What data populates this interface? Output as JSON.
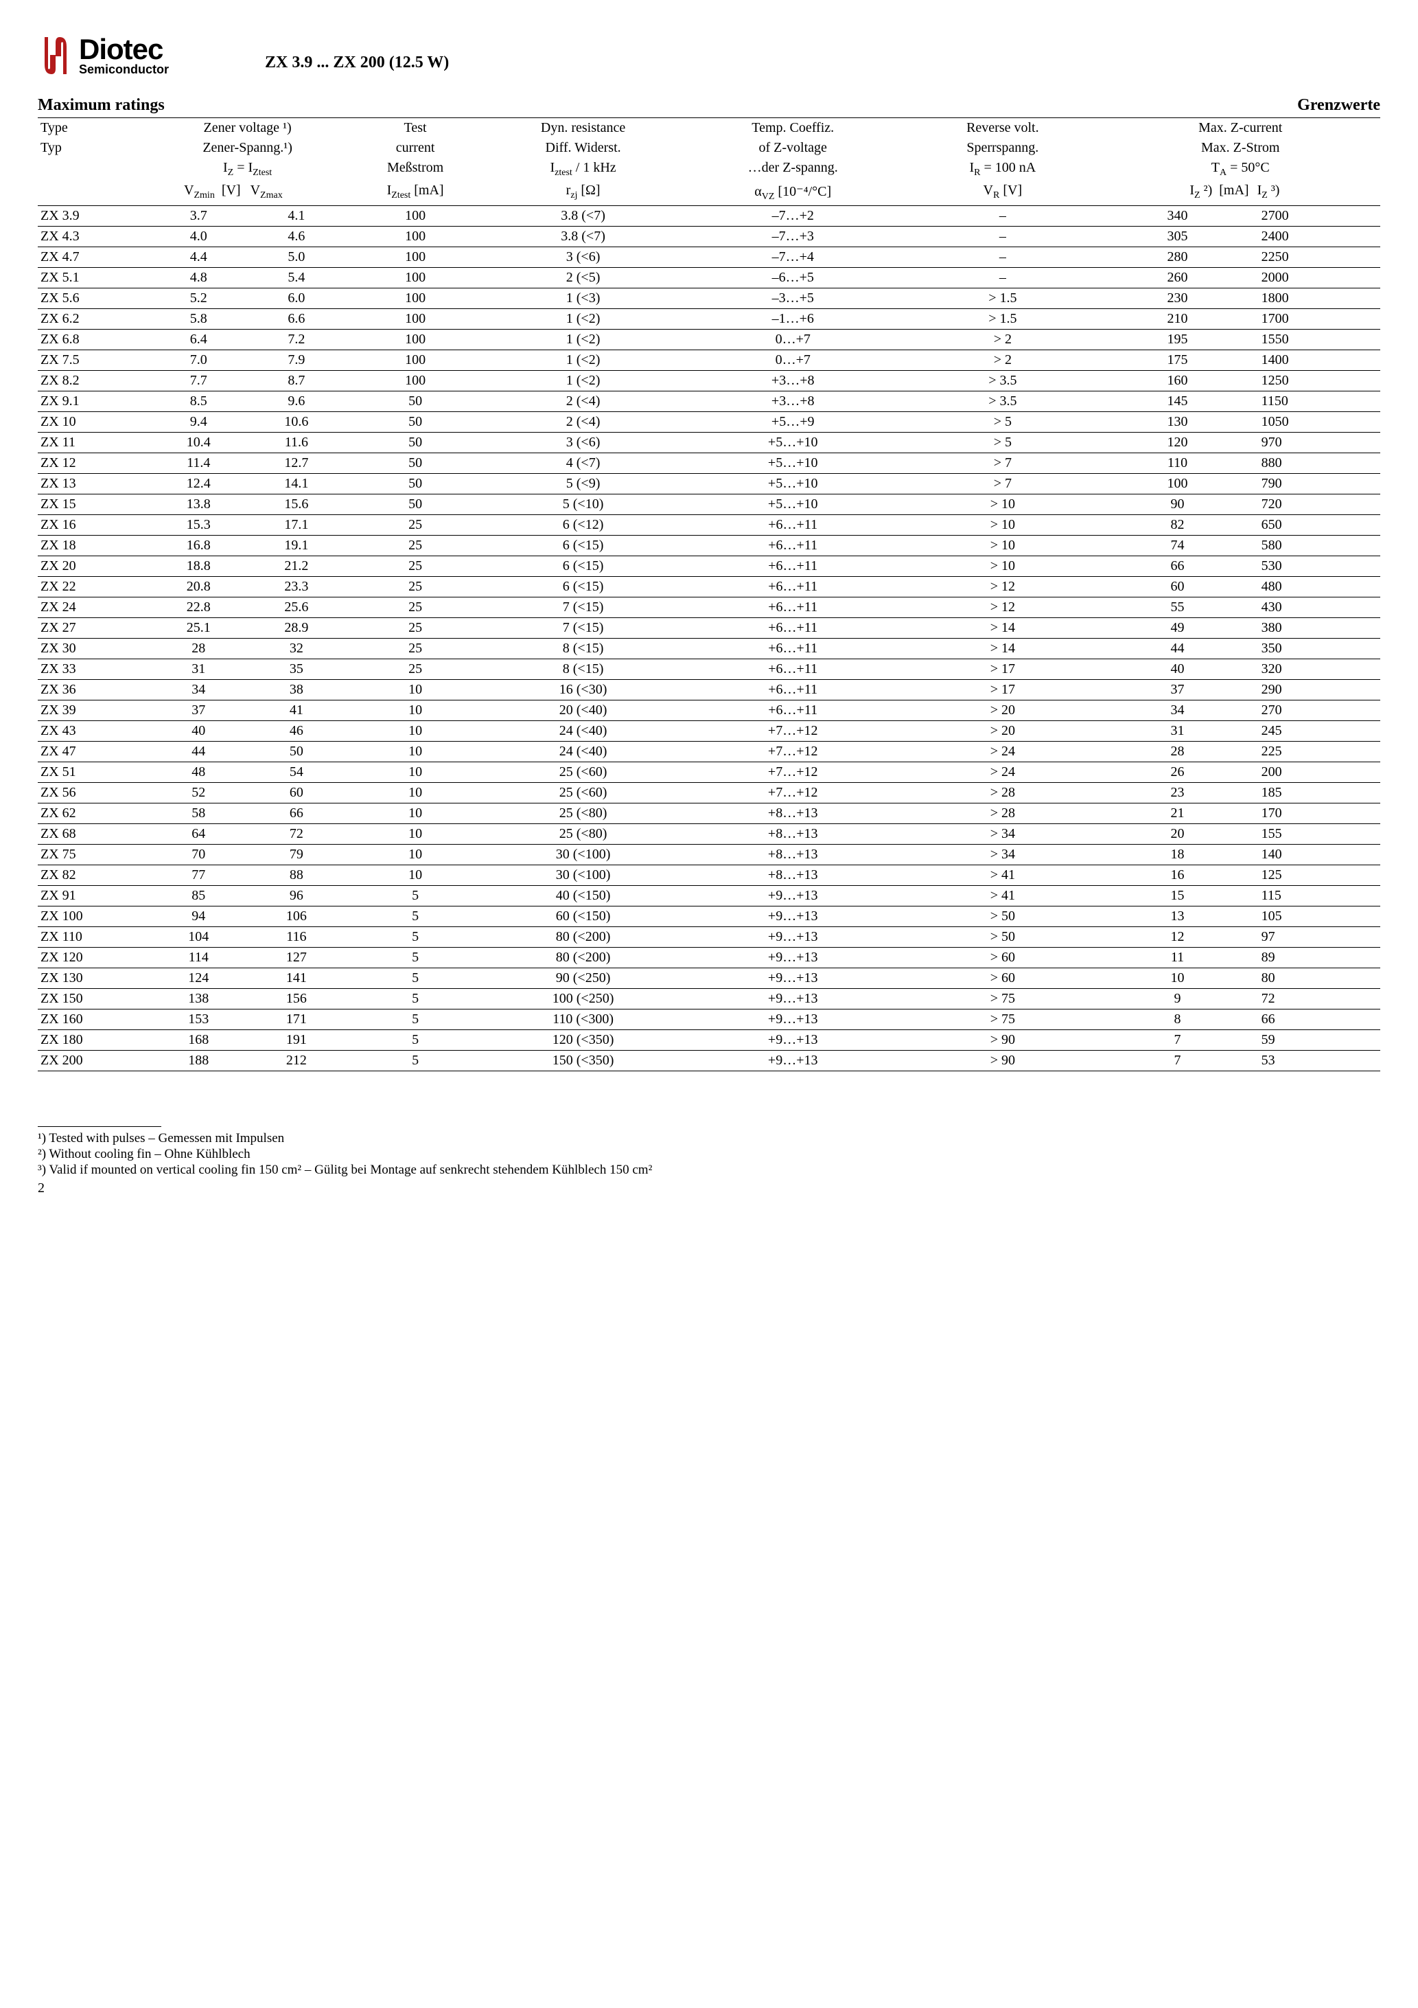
{
  "logo": {
    "main": "Diotec",
    "sub": "Semiconductor",
    "color": "#b31b1b"
  },
  "doc_title": "ZX 3.9 ... ZX 200 (12.5 W)",
  "section_left": "Maximum ratings",
  "section_right": "Grenzwerte",
  "page_number": "2",
  "headers": {
    "type1": "Type",
    "type2": "Typ",
    "zener1": "Zener voltage ¹)",
    "zener2": "Zener-Spanng.¹)",
    "zener3_pre": "I",
    "zener3_sub1": "Z",
    "zener3_mid": " = I",
    "zener3_sub2": "Ztest",
    "zener4_vmin_pre": "V",
    "zener4_vmin_sub": "Zmin",
    "zener4_unit": "[V]",
    "zener4_vmax_pre": "V",
    "zener4_vmax_sub": "Zmax",
    "test1": "Test",
    "test2": "current",
    "test3": "Meßstrom",
    "test4_pre": "I",
    "test4_sub": "Ztest",
    "test4_unit": "[mA]",
    "dyn1": "Dyn. resistance",
    "dyn2": "Diff. Widerst.",
    "dyn3_pre": "I",
    "dyn3_sub": "ztest",
    "dyn3_post": " / 1 kHz",
    "dyn4_pre": "r",
    "dyn4_sub": "zj",
    "dyn4_unit": "[Ω]",
    "temp1": "Temp. Coeffiz.",
    "temp2": "of Z-voltage",
    "temp3": "…der Z-spanng.",
    "temp4_pre": "α",
    "temp4_sub": "VZ",
    "temp4_unit": "[10⁻⁴/°C]",
    "rev1": "Reverse volt.",
    "rev2": "Sperrspanng.",
    "rev3_pre": "I",
    "rev3_sub": "R",
    "rev3_post": " = 100 nA",
    "rev4_pre": "V",
    "rev4_sub": "R",
    "rev4_unit": "[V]",
    "max1": "Max. Z-current",
    "max2": "Max. Z-Strom",
    "max3_pre": "T",
    "max3_sub": "A",
    "max3_post": " = 50°C",
    "max4_iz2_pre": "I",
    "max4_iz2_sub": "Z",
    "max4_iz2_sup": " ²)",
    "max4_unit": "[mA]",
    "max4_iz3_pre": "I",
    "max4_iz3_sub": "Z",
    "max4_iz3_sup": " ³)"
  },
  "rows": [
    {
      "type": "ZX 3.9",
      "vmin": "3.7",
      "vmax": "4.1",
      "test": "100",
      "dyn": "3.8 (<7)",
      "temp": "–7…+2",
      "rev": "–",
      "iz2": "340",
      "iz3": "2700"
    },
    {
      "type": "ZX 4.3",
      "vmin": "4.0",
      "vmax": "4.6",
      "test": "100",
      "dyn": "3.8 (<7)",
      "temp": "–7…+3",
      "rev": "–",
      "iz2": "305",
      "iz3": "2400"
    },
    {
      "type": "ZX 4.7",
      "vmin": "4.4",
      "vmax": "5.0",
      "test": "100",
      "dyn": "3 (<6)",
      "temp": "–7…+4",
      "rev": "–",
      "iz2": "280",
      "iz3": "2250"
    },
    {
      "type": "ZX 5.1",
      "vmin": "4.8",
      "vmax": "5.4",
      "test": "100",
      "dyn": "2 (<5)",
      "temp": "–6…+5",
      "rev": "–",
      "iz2": "260",
      "iz3": "2000"
    },
    {
      "type": "ZX 5.6",
      "vmin": "5.2",
      "vmax": "6.0",
      "test": "100",
      "dyn": "1 (<3)",
      "temp": "–3…+5",
      "rev": "> 1.5",
      "iz2": "230",
      "iz3": "1800"
    },
    {
      "type": "ZX 6.2",
      "vmin": "5.8",
      "vmax": "6.6",
      "test": "100",
      "dyn": "1 (<2)",
      "temp": "–1…+6",
      "rev": "> 1.5",
      "iz2": "210",
      "iz3": "1700"
    },
    {
      "type": "ZX 6.8",
      "vmin": "6.4",
      "vmax": "7.2",
      "test": "100",
      "dyn": "1 (<2)",
      "temp": "0…+7",
      "rev": "> 2",
      "iz2": "195",
      "iz3": "1550"
    },
    {
      "type": "ZX 7.5",
      "vmin": "7.0",
      "vmax": "7.9",
      "test": "100",
      "dyn": "1 (<2)",
      "temp": "0…+7",
      "rev": "> 2",
      "iz2": "175",
      "iz3": "1400"
    },
    {
      "type": "ZX 8.2",
      "vmin": "7.7",
      "vmax": "8.7",
      "test": "100",
      "dyn": "1 (<2)",
      "temp": "+3…+8",
      "rev": "> 3.5",
      "iz2": "160",
      "iz3": "1250"
    },
    {
      "type": "ZX 9.1",
      "vmin": "8.5",
      "vmax": "9.6",
      "test": "50",
      "dyn": "2 (<4)",
      "temp": "+3…+8",
      "rev": "> 3.5",
      "iz2": "145",
      "iz3": "1150"
    },
    {
      "type": "ZX 10",
      "vmin": "9.4",
      "vmax": "10.6",
      "test": "50",
      "dyn": "2 (<4)",
      "temp": "+5…+9",
      "rev": "> 5",
      "iz2": "130",
      "iz3": "1050"
    },
    {
      "type": "ZX 11",
      "vmin": "10.4",
      "vmax": "11.6",
      "test": "50",
      "dyn": "3 (<6)",
      "temp": "+5…+10",
      "rev": "> 5",
      "iz2": "120",
      "iz3": "970"
    },
    {
      "type": "ZX 12",
      "vmin": "11.4",
      "vmax": "12.7",
      "test": "50",
      "dyn": "4 (<7)",
      "temp": "+5…+10",
      "rev": "> 7",
      "iz2": "110",
      "iz3": "880"
    },
    {
      "type": "ZX 13",
      "vmin": "12.4",
      "vmax": "14.1",
      "test": "50",
      "dyn": "5 (<9)",
      "temp": "+5…+10",
      "rev": "> 7",
      "iz2": "100",
      "iz3": "790"
    },
    {
      "type": "ZX 15",
      "vmin": "13.8",
      "vmax": "15.6",
      "test": "50",
      "dyn": "5 (<10)",
      "temp": "+5…+10",
      "rev": "> 10",
      "iz2": "90",
      "iz3": "720"
    },
    {
      "type": "ZX 16",
      "vmin": "15.3",
      "vmax": "17.1",
      "test": "25",
      "dyn": "6 (<12)",
      "temp": "+6…+11",
      "rev": "> 10",
      "iz2": "82",
      "iz3": "650"
    },
    {
      "type": "ZX 18",
      "vmin": "16.8",
      "vmax": "19.1",
      "test": "25",
      "dyn": "6 (<15)",
      "temp": "+6…+11",
      "rev": "> 10",
      "iz2": "74",
      "iz3": "580"
    },
    {
      "type": "ZX 20",
      "vmin": "18.8",
      "vmax": "21.2",
      "test": "25",
      "dyn": "6 (<15)",
      "temp": "+6…+11",
      "rev": "> 10",
      "iz2": "66",
      "iz3": "530"
    },
    {
      "type": "ZX 22",
      "vmin": "20.8",
      "vmax": "23.3",
      "test": "25",
      "dyn": "6 (<15)",
      "temp": "+6…+11",
      "rev": "> 12",
      "iz2": "60",
      "iz3": "480"
    },
    {
      "type": "ZX 24",
      "vmin": "22.8",
      "vmax": "25.6",
      "test": "25",
      "dyn": "7 (<15)",
      "temp": "+6…+11",
      "rev": "> 12",
      "iz2": "55",
      "iz3": "430"
    },
    {
      "type": "ZX 27",
      "vmin": "25.1",
      "vmax": "28.9",
      "test": "25",
      "dyn": "7 (<15)",
      "temp": "+6…+11",
      "rev": "> 14",
      "iz2": "49",
      "iz3": "380"
    },
    {
      "type": "ZX 30",
      "vmin": "28",
      "vmax": "32",
      "test": "25",
      "dyn": "8 (<15)",
      "temp": "+6…+11",
      "rev": "> 14",
      "iz2": "44",
      "iz3": "350"
    },
    {
      "type": "ZX 33",
      "vmin": "31",
      "vmax": "35",
      "test": "25",
      "dyn": "8 (<15)",
      "temp": "+6…+11",
      "rev": "> 17",
      "iz2": "40",
      "iz3": "320"
    },
    {
      "type": "ZX 36",
      "vmin": "34",
      "vmax": "38",
      "test": "10",
      "dyn": "16 (<30)",
      "temp": "+6…+11",
      "rev": "> 17",
      "iz2": "37",
      "iz3": "290"
    },
    {
      "type": "ZX 39",
      "vmin": "37",
      "vmax": "41",
      "test": "10",
      "dyn": "20 (<40)",
      "temp": "+6…+11",
      "rev": "> 20",
      "iz2": "34",
      "iz3": "270"
    },
    {
      "type": "ZX 43",
      "vmin": "40",
      "vmax": "46",
      "test": "10",
      "dyn": "24 (<40)",
      "temp": "+7…+12",
      "rev": "> 20",
      "iz2": "31",
      "iz3": "245"
    },
    {
      "type": "ZX 47",
      "vmin": "44",
      "vmax": "50",
      "test": "10",
      "dyn": "24 (<40)",
      "temp": "+7…+12",
      "rev": "> 24",
      "iz2": "28",
      "iz3": "225"
    },
    {
      "type": "ZX 51",
      "vmin": "48",
      "vmax": "54",
      "test": "10",
      "dyn": "25 (<60)",
      "temp": "+7…+12",
      "rev": "> 24",
      "iz2": "26",
      "iz3": "200"
    },
    {
      "type": "ZX 56",
      "vmin": "52",
      "vmax": "60",
      "test": "10",
      "dyn": "25 (<60)",
      "temp": "+7…+12",
      "rev": "> 28",
      "iz2": "23",
      "iz3": "185"
    },
    {
      "type": "ZX 62",
      "vmin": "58",
      "vmax": "66",
      "test": "10",
      "dyn": "25 (<80)",
      "temp": "+8…+13",
      "rev": "> 28",
      "iz2": "21",
      "iz3": "170"
    },
    {
      "type": "ZX 68",
      "vmin": "64",
      "vmax": "72",
      "test": "10",
      "dyn": "25 (<80)",
      "temp": "+8…+13",
      "rev": "> 34",
      "iz2": "20",
      "iz3": "155"
    },
    {
      "type": "ZX 75",
      "vmin": "70",
      "vmax": "79",
      "test": "10",
      "dyn": "30 (<100)",
      "temp": "+8…+13",
      "rev": "> 34",
      "iz2": "18",
      "iz3": "140"
    },
    {
      "type": "ZX 82",
      "vmin": "77",
      "vmax": "88",
      "test": "10",
      "dyn": "30 (<100)",
      "temp": "+8…+13",
      "rev": "> 41",
      "iz2": "16",
      "iz3": "125"
    },
    {
      "type": "ZX 91",
      "vmin": "85",
      "vmax": "96",
      "test": "5",
      "dyn": "40 (<150)",
      "temp": "+9…+13",
      "rev": "> 41",
      "iz2": "15",
      "iz3": "115"
    },
    {
      "type": "ZX 100",
      "vmin": "94",
      "vmax": "106",
      "test": "5",
      "dyn": "60 (<150)",
      "temp": "+9…+13",
      "rev": "> 50",
      "iz2": "13",
      "iz3": "105"
    },
    {
      "type": "ZX 110",
      "vmin": "104",
      "vmax": "116",
      "test": "5",
      "dyn": "80 (<200)",
      "temp": "+9…+13",
      "rev": "> 50",
      "iz2": "12",
      "iz3": "97"
    },
    {
      "type": "ZX 120",
      "vmin": "114",
      "vmax": "127",
      "test": "5",
      "dyn": "80 (<200)",
      "temp": "+9…+13",
      "rev": "> 60",
      "iz2": "11",
      "iz3": "89"
    },
    {
      "type": "ZX 130",
      "vmin": "124",
      "vmax": "141",
      "test": "5",
      "dyn": "90 (<250)",
      "temp": "+9…+13",
      "rev": "> 60",
      "iz2": "10",
      "iz3": "80"
    },
    {
      "type": "ZX 150",
      "vmin": "138",
      "vmax": "156",
      "test": "5",
      "dyn": "100 (<250)",
      "temp": "+9…+13",
      "rev": "> 75",
      "iz2": "9",
      "iz3": "72"
    },
    {
      "type": "ZX 160",
      "vmin": "153",
      "vmax": "171",
      "test": "5",
      "dyn": "110 (<300)",
      "temp": "+9…+13",
      "rev": "> 75",
      "iz2": "8",
      "iz3": "66"
    },
    {
      "type": "ZX 180",
      "vmin": "168",
      "vmax": "191",
      "test": "5",
      "dyn": "120 (<350)",
      "temp": "+9…+13",
      "rev": "> 90",
      "iz2": "7",
      "iz3": "59"
    },
    {
      "type": "ZX 200",
      "vmin": "188",
      "vmax": "212",
      "test": "5",
      "dyn": "150 (<350)",
      "temp": "+9…+13",
      "rev": "> 90",
      "iz2": "7",
      "iz3": "53"
    }
  ],
  "footnotes": {
    "f1": "¹)   Tested with pulses – Gemessen mit Impulsen",
    "f2": "²)   Without cooling fin – Ohne Kühlblech",
    "f3": "³)   Valid if mounted on vertical cooling fin 150 cm² – Gülitg bei Montage auf  senkrecht stehendem Kühlblech 150 cm²"
  }
}
